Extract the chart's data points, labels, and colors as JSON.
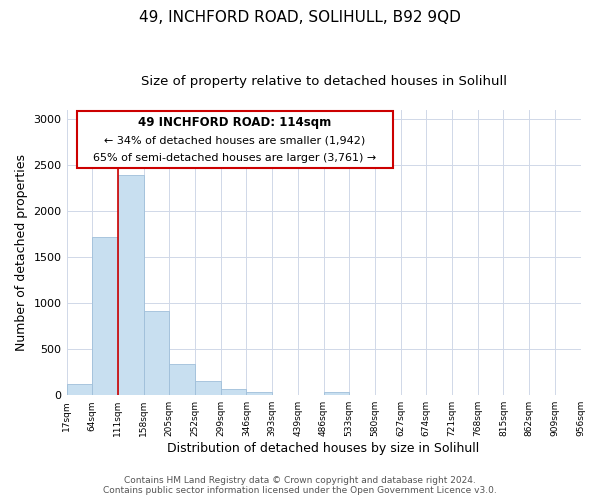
{
  "title": "49, INCHFORD ROAD, SOLIHULL, B92 9QD",
  "subtitle": "Size of property relative to detached houses in Solihull",
  "xlabel": "Distribution of detached houses by size in Solihull",
  "ylabel": "Number of detached properties",
  "bin_labels": [
    "17sqm",
    "64sqm",
    "111sqm",
    "158sqm",
    "205sqm",
    "252sqm",
    "299sqm",
    "346sqm",
    "393sqm",
    "439sqm",
    "486sqm",
    "533sqm",
    "580sqm",
    "627sqm",
    "674sqm",
    "721sqm",
    "768sqm",
    "815sqm",
    "862sqm",
    "909sqm",
    "956sqm"
  ],
  "bar_heights": [
    120,
    1720,
    2390,
    910,
    340,
    155,
    70,
    35,
    0,
    0,
    30,
    0,
    0,
    0,
    0,
    0,
    0,
    0,
    0,
    0
  ],
  "bar_color": "#c8dff0",
  "bar_edge_color": "#9fbfda",
  "vline_x": 2,
  "vline_color": "#cc0000",
  "ylim": [
    0,
    3100
  ],
  "yticks": [
    0,
    500,
    1000,
    1500,
    2000,
    2500,
    3000
  ],
  "annotation_title": "49 INCHFORD ROAD: 114sqm",
  "annotation_line1": "← 34% of detached houses are smaller (1,942)",
  "annotation_line2": "65% of semi-detached houses are larger (3,761) →",
  "footer_line1": "Contains HM Land Registry data © Crown copyright and database right 2024.",
  "footer_line2": "Contains public sector information licensed under the Open Government Licence v3.0.",
  "background_color": "#ffffff",
  "grid_color": "#d0d8e8",
  "title_fontsize": 11,
  "subtitle_fontsize": 9.5,
  "xlabel_fontsize": 9,
  "ylabel_fontsize": 9,
  "annotation_box_edgecolor": "#cc0000",
  "footer_fontsize": 6.5
}
